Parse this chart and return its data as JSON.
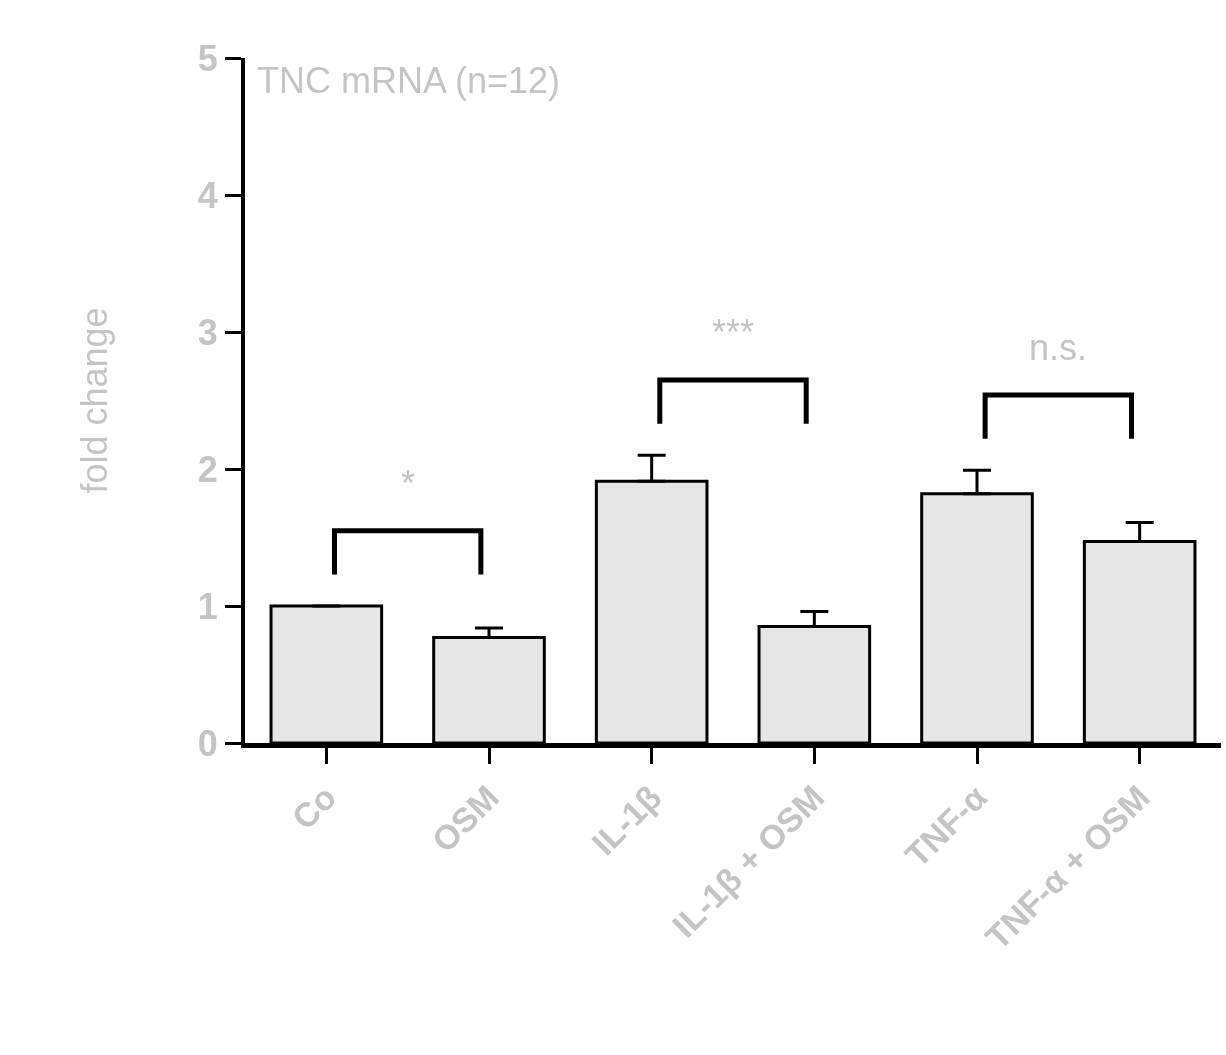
{
  "chart_data": {
    "type": "bar",
    "title": "TNC mRNA (n=12)",
    "ylabel": "fold change",
    "categories": [
      "Co",
      "OSM",
      "IL-1β",
      "IL-1β + OSM",
      "TNF-α",
      "TNF-α + OSM"
    ],
    "values": [
      1.0,
      0.77,
      1.91,
      0.85,
      1.82,
      1.47
    ],
    "errors": [
      null,
      [
        0.77,
        0.84
      ],
      [
        1.91,
        2.1
      ],
      [
        0.85,
        0.96
      ],
      [
        1.82,
        1.99
      ],
      [
        1.47,
        1.61
      ]
    ],
    "color": "#e6e6e6",
    "ylim": [
      0,
      5
    ],
    "yticks": [
      0,
      1,
      2,
      3,
      4,
      5
    ],
    "annotations": [
      "*",
      "***",
      "n.s."
    ]
  }
}
